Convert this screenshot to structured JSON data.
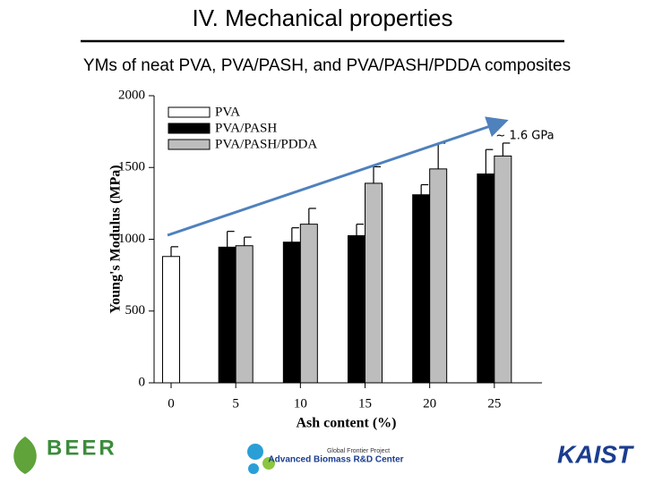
{
  "slide": {
    "title": "IV. Mechanical properties",
    "subtitle": "YMs of neat PVA, PVA/PASH, and PVA/PASH/PDDA composites"
  },
  "chart_data": {
    "type": "bar",
    "categories": [
      "0",
      "5",
      "10",
      "15",
      "20",
      "25"
    ],
    "series": [
      {
        "name": "PVA",
        "color": "#ffffff",
        "values": [
          880,
          null,
          null,
          null,
          null,
          null
        ],
        "errors": [
          68,
          null,
          null,
          null,
          null,
          null
        ]
      },
      {
        "name": "PVA/PASH",
        "color": "#000000",
        "values": [
          null,
          945,
          980,
          1025,
          1310,
          1455
        ],
        "errors": [
          null,
          110,
          100,
          80,
          70,
          170
        ]
      },
      {
        "name": "PVA/PASH/PDDA",
        "color": "#bdbdbd",
        "values": [
          null,
          955,
          1105,
          1390,
          1490,
          1580
        ],
        "errors": [
          null,
          60,
          110,
          115,
          180,
          90
        ]
      }
    ],
    "ylim": [
      0,
      2000
    ],
    "yticks": [
      0,
      500,
      1000,
      1500,
      2000
    ],
    "xlabel": "Ash content (%)",
    "ylabel": "Young's Modulus (MPa)",
    "annotation": "~ 1.6 GPa",
    "legend": "upper left"
  },
  "logos": {
    "beer": "BEER",
    "center_project": "Global Frontier Project",
    "center_name": "Advanced Biomass R&D Center",
    "kaist": "KAIST"
  }
}
